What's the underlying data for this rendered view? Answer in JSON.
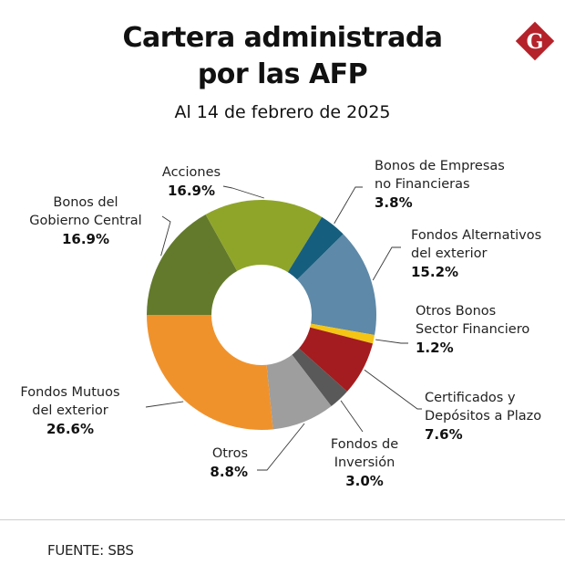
{
  "header": {
    "title_line1": "Cartera administrada",
    "title_line2": "por las AFP",
    "subtitle": "Al 14 de febrero de 2025"
  },
  "logo": {
    "icon": "gestion-logo-icon",
    "letter": "G",
    "color": "#b5222a"
  },
  "chart_data": {
    "type": "pie",
    "variant": "donut",
    "title": "Cartera administrada por las AFP",
    "subtitle": "Al 14 de febrero de 2025",
    "unit": "%",
    "slices": [
      {
        "label_lines": [
          "Bonos del",
          "Gobierno Central"
        ],
        "label": "Bonos del Gobierno Central",
        "value": 16.9,
        "value_text": "16.9%",
        "color": "#637a2c"
      },
      {
        "label_lines": [
          "Acciones"
        ],
        "label": "Acciones",
        "value": 16.9,
        "value_text": "16.9%",
        "color": "#8fa52a"
      },
      {
        "label_lines": [
          "Bonos de Empresas",
          "no Financieras"
        ],
        "label": "Bonos de Empresas no Financieras",
        "value": 3.8,
        "value_text": "3.8%",
        "color": "#165e7e"
      },
      {
        "label_lines": [
          "Fondos Alternativos",
          "del exterior"
        ],
        "label": "Fondos Alternativos del exterior",
        "value": 15.2,
        "value_text": "15.2%",
        "color": "#5e89a8"
      },
      {
        "label_lines": [
          "Otros Bonos",
          "Sector Financiero"
        ],
        "label": "Otros Bonos Sector Financiero",
        "value": 1.2,
        "value_text": "1.2%",
        "color": "#f4c515"
      },
      {
        "label_lines": [
          "Certificados y",
          "Depósitos a Plazo"
        ],
        "label": "Certificados y Depósitos a Plazo",
        "value": 7.6,
        "value_text": "7.6%",
        "color": "#a41c1f"
      },
      {
        "label_lines": [
          "Fondos de",
          "Inversión"
        ],
        "label": "Fondos de Inversión",
        "value": 3.0,
        "value_text": "3.0%",
        "color": "#595959"
      },
      {
        "label_lines": [
          "Otros"
        ],
        "label": "Otros",
        "value": 8.8,
        "value_text": "8.8%",
        "color": "#9e9e9e"
      },
      {
        "label_lines": [
          "Fondos Mutuos",
          "del exterior"
        ],
        "label": "Fondos Mutuos del exterior",
        "value": 26.6,
        "value_text": "26.6%",
        "color": "#f0922b"
      }
    ],
    "start": "left (9 o'clock), clockwise",
    "legend": "none (callout labels)"
  },
  "footer": {
    "source": "FUENTE: SBS"
  }
}
